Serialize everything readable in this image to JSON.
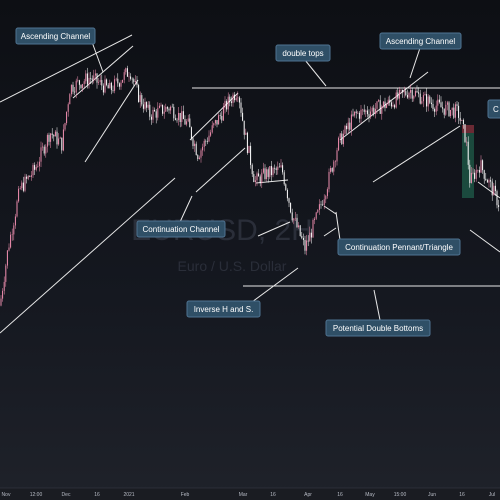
{
  "watermark": {
    "symbol": "EURUSD, 2H",
    "description": "Euro / U.S. Dollar"
  },
  "colors": {
    "background_top": "#0d0f14",
    "up_candle": "#f08fb0",
    "down_candle": "#ffffff",
    "trendline": "#e8e8e8",
    "callout_fill": "#2f4f66",
    "callout_stroke": "#4f7391",
    "highlight_green": "#1f5c4a",
    "highlight_red": "#6b2a34"
  },
  "annotations": [
    {
      "id": "ascending-channel-1",
      "text": "Ascending Channel"
    },
    {
      "id": "double-tops",
      "text": "double tops"
    },
    {
      "id": "ascending-channel-2",
      "text": "Ascending Channel"
    },
    {
      "id": "cut-right",
      "text": "C"
    },
    {
      "id": "continuation-channel",
      "text": "Continuation Channel"
    },
    {
      "id": "continuation-pennant",
      "text": "Continuation Pennant/Triangle"
    },
    {
      "id": "inverse-hs",
      "text": "Inverse H and S."
    },
    {
      "id": "double-bottoms",
      "text": "Potential Double Bottoms"
    }
  ],
  "chart_data": {
    "type": "candlestick",
    "x_ticks": [
      "Nov",
      "12:00",
      "Dec",
      "16",
      "2021",
      "Feb",
      "Mar",
      "16",
      "Apr",
      "16",
      "May",
      "15:00",
      "Jun",
      "16",
      "Jul"
    ],
    "price_path": [
      [
        0,
        0.05
      ],
      [
        8,
        0.28
      ],
      [
        20,
        0.52
      ],
      [
        35,
        0.6
      ],
      [
        50,
        0.75
      ],
      [
        62,
        0.7
      ],
      [
        70,
        0.93
      ],
      [
        90,
        0.97
      ],
      [
        110,
        0.92
      ],
      [
        130,
        1.0
      ],
      [
        138,
        0.9
      ],
      [
        150,
        0.82
      ],
      [
        170,
        0.85
      ],
      [
        188,
        0.78
      ],
      [
        198,
        0.66
      ],
      [
        215,
        0.78
      ],
      [
        230,
        0.88
      ],
      [
        238,
        0.92
      ],
      [
        245,
        0.74
      ],
      [
        255,
        0.55
      ],
      [
        265,
        0.58
      ],
      [
        282,
        0.6
      ],
      [
        292,
        0.42
      ],
      [
        305,
        0.28
      ],
      [
        318,
        0.42
      ],
      [
        328,
        0.55
      ],
      [
        338,
        0.7
      ],
      [
        355,
        0.82
      ],
      [
        372,
        0.84
      ],
      [
        392,
        0.87
      ],
      [
        410,
        0.92
      ],
      [
        425,
        0.88
      ],
      [
        440,
        0.85
      ],
      [
        458,
        0.83
      ],
      [
        466,
        0.72
      ],
      [
        470,
        0.55
      ],
      [
        480,
        0.62
      ],
      [
        492,
        0.52
      ],
      [
        500,
        0.45
      ]
    ]
  }
}
